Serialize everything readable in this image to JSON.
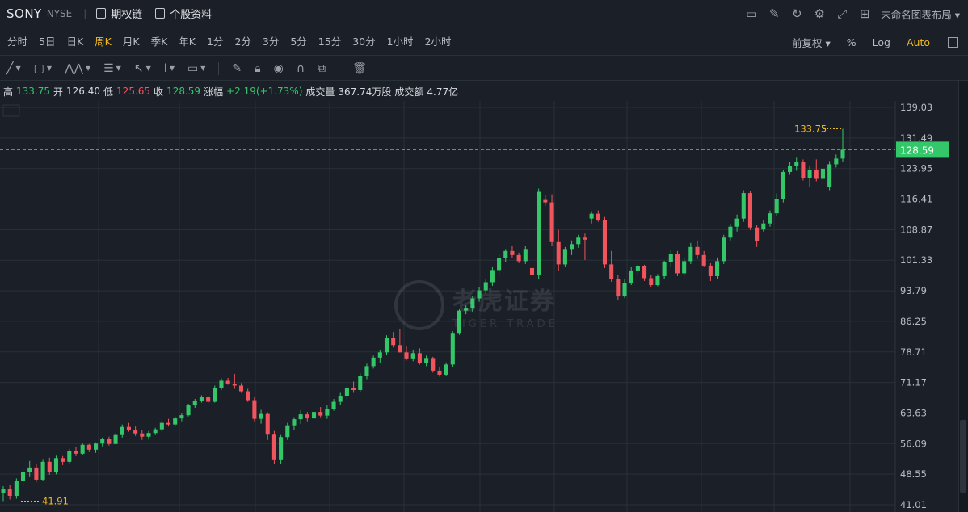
{
  "topbar": {
    "ticker": "SONY",
    "exchange": "NYSE",
    "link1": "期权链",
    "link2": "个股资料",
    "layout_label": "未命名图表布局 ▾"
  },
  "periods": [
    "分时",
    "5日",
    "日K",
    "周K",
    "月K",
    "季K",
    "年K",
    "1分",
    "2分",
    "3分",
    "5分",
    "15分",
    "30分",
    "1小时",
    "2小时"
  ],
  "active_period": "周K",
  "chart_options": {
    "adjust": "前复权 ▾",
    "percent": "%",
    "log": "Log",
    "auto": "Auto"
  },
  "info": {
    "high_label": "高",
    "high": "133.75",
    "open_label": "开",
    "open": "126.40",
    "low_label": "低",
    "low": "125.65",
    "close_label": "收",
    "close": "128.59",
    "change_label": "涨幅",
    "change": "+2.19(+1.73%)",
    "volume_label": "成交量",
    "volume": "367.74万股",
    "turnover_label": "成交额",
    "turnover": "4.77亿"
  },
  "watermark": {
    "cn": "老虎证券",
    "en": "TIGER TRADE"
  },
  "colors": {
    "up": "#34c76a",
    "down": "#f0545c",
    "accent": "#f2b91c",
    "bg": "#1b2028",
    "grid": "#2a3038"
  },
  "chart_data": {
    "type": "candlestick",
    "y_ticks": [
      "139.03",
      "131.49",
      "123.95",
      "116.41",
      "108.87",
      "101.33",
      "93.79",
      "86.25",
      "78.71",
      "71.17",
      "63.63",
      "56.09",
      "48.55",
      "41.01"
    ],
    "ylim": [
      41.01,
      139.03
    ],
    "last_price": "128.59",
    "max_label": "133.75",
    "min_label": "41.91",
    "candles": [
      [
        44.0,
        45.6,
        41.9,
        44.8
      ],
      [
        44.8,
        46.0,
        42.3,
        43.2
      ],
      [
        43.2,
        47.5,
        42.5,
        46.8
      ],
      [
        46.8,
        50.0,
        45.5,
        49.0
      ],
      [
        49.0,
        51.8,
        47.8,
        50.2
      ],
      [
        50.2,
        51.0,
        46.6,
        47.2
      ],
      [
        47.2,
        52.3,
        46.8,
        51.6
      ],
      [
        51.6,
        52.6,
        48.4,
        49.0
      ],
      [
        49.0,
        53.1,
        48.5,
        52.5
      ],
      [
        52.5,
        53.0,
        50.8,
        51.6
      ],
      [
        51.6,
        54.8,
        51.2,
        54.2
      ],
      [
        54.2,
        55.2,
        53.0,
        53.6
      ],
      [
        53.6,
        56.2,
        53.2,
        55.8
      ],
      [
        55.8,
        56.0,
        54.0,
        54.6
      ],
      [
        54.6,
        56.4,
        53.8,
        56.1
      ],
      [
        56.1,
        57.6,
        55.4,
        57.2
      ],
      [
        57.2,
        57.8,
        55.6,
        56.0
      ],
      [
        56.0,
        58.6,
        55.9,
        58.2
      ],
      [
        58.2,
        60.8,
        57.6,
        60.2
      ],
      [
        60.2,
        61.2,
        59.0,
        59.5
      ],
      [
        59.5,
        60.3,
        58.0,
        58.6
      ],
      [
        58.6,
        59.5,
        57.0,
        57.8
      ],
      [
        57.8,
        59.2,
        57.1,
        58.7
      ],
      [
        58.7,
        60.0,
        58.2,
        59.6
      ],
      [
        59.6,
        61.8,
        59.0,
        61.2
      ],
      [
        61.2,
        62.2,
        60.3,
        60.8
      ],
      [
        60.8,
        62.8,
        60.2,
        62.3
      ],
      [
        62.3,
        63.6,
        61.6,
        63.1
      ],
      [
        63.1,
        65.9,
        62.8,
        65.5
      ],
      [
        65.5,
        67.1,
        64.9,
        66.6
      ],
      [
        66.6,
        68.0,
        66.2,
        67.5
      ],
      [
        67.5,
        67.9,
        66.0,
        66.4
      ],
      [
        66.4,
        70.4,
        66.2,
        69.8
      ],
      [
        69.8,
        72.2,
        69.3,
        71.6
      ],
      [
        71.6,
        72.3,
        70.6,
        70.9
      ],
      [
        70.9,
        73.3,
        69.6,
        70.4
      ],
      [
        70.4,
        71.0,
        68.6,
        69.0
      ],
      [
        69.0,
        69.6,
        66.4,
        66.8
      ],
      [
        66.8,
        67.6,
        61.6,
        62.2
      ],
      [
        62.2,
        64.4,
        61.0,
        63.4
      ],
      [
        63.4,
        63.8,
        57.0,
        58.3
      ],
      [
        58.3,
        59.2,
        51.0,
        52.2
      ],
      [
        52.2,
        58.2,
        51.0,
        57.7
      ],
      [
        57.7,
        61.2,
        57.0,
        60.6
      ],
      [
        60.6,
        62.6,
        59.4,
        62.1
      ],
      [
        62.1,
        64.3,
        60.9,
        63.3
      ],
      [
        63.3,
        63.9,
        61.6,
        62.3
      ],
      [
        62.3,
        64.6,
        61.7,
        63.9
      ],
      [
        63.9,
        65.1,
        62.6,
        63.0
      ],
      [
        63.0,
        65.5,
        62.2,
        64.6
      ],
      [
        64.6,
        67.1,
        64.2,
        66.4
      ],
      [
        66.4,
        68.6,
        65.6,
        67.9
      ],
      [
        67.9,
        70.4,
        67.0,
        69.8
      ],
      [
        69.8,
        71.4,
        68.6,
        69.3
      ],
      [
        69.3,
        73.4,
        68.8,
        72.8
      ],
      [
        72.8,
        75.8,
        72.0,
        75.2
      ],
      [
        75.2,
        77.8,
        74.6,
        77.3
      ],
      [
        77.3,
        79.2,
        75.9,
        78.6
      ],
      [
        78.6,
        82.8,
        78.0,
        82.1
      ],
      [
        82.1,
        83.6,
        79.8,
        80.4
      ],
      [
        80.4,
        84.3,
        78.6,
        78.6
      ],
      [
        78.6,
        80.0,
        76.6,
        77.1
      ],
      [
        77.1,
        79.2,
        76.4,
        78.4
      ],
      [
        78.4,
        79.6,
        75.6,
        75.9
      ],
      [
        75.9,
        77.8,
        75.2,
        77.2
      ],
      [
        77.2,
        77.5,
        73.6,
        74.1
      ],
      [
        74.1,
        75.0,
        72.6,
        73.1
      ],
      [
        73.1,
        76.1,
        72.9,
        75.6
      ],
      [
        75.6,
        83.8,
        75.0,
        83.4
      ],
      [
        83.4,
        89.2,
        82.9,
        88.9
      ],
      [
        88.9,
        90.2,
        88.0,
        89.4
      ],
      [
        89.4,
        92.6,
        88.6,
        91.9
      ],
      [
        91.9,
        94.6,
        91.1,
        93.9
      ],
      [
        93.9,
        96.6,
        93.1,
        95.9
      ],
      [
        95.9,
        99.6,
        95.0,
        98.9
      ],
      [
        98.9,
        102.8,
        97.8,
        101.9
      ],
      [
        101.9,
        104.1,
        100.8,
        103.6
      ],
      [
        103.6,
        104.8,
        102.0,
        102.6
      ],
      [
        102.6,
        103.2,
        100.6,
        101.1
      ],
      [
        101.1,
        104.8,
        100.4,
        104.1
      ],
      [
        99.4,
        101.8,
        96.8,
        97.6
      ],
      [
        97.6,
        119.0,
        96.6,
        118.2
      ],
      [
        116.2,
        117.4,
        114.8,
        115.6
      ],
      [
        115.6,
        117.6,
        104.8,
        105.8
      ],
      [
        105.8,
        108.8,
        98.6,
        100.3
      ],
      [
        100.3,
        104.6,
        99.6,
        104.1
      ],
      [
        104.1,
        106.2,
        102.6,
        105.3
      ],
      [
        105.3,
        107.6,
        104.4,
        106.9
      ],
      [
        106.9,
        107.9,
        101.4,
        106.4
      ],
      [
        111.6,
        113.4,
        110.4,
        112.8
      ],
      [
        112.8,
        113.6,
        110.8,
        111.2
      ],
      [
        111.2,
        112.0,
        99.4,
        100.3
      ],
      [
        100.3,
        103.6,
        96.0,
        96.6
      ],
      [
        96.6,
        97.6,
        91.6,
        92.4
      ],
      [
        92.4,
        96.6,
        92.0,
        95.6
      ],
      [
        95.6,
        99.6,
        95.2,
        98.8
      ],
      [
        98.8,
        100.4,
        97.6,
        99.9
      ],
      [
        99.9,
        100.2,
        96.2,
        96.9
      ],
      [
        96.9,
        97.6,
        94.6,
        95.2
      ],
      [
        95.2,
        97.9,
        94.9,
        97.4
      ],
      [
        97.4,
        101.2,
        96.6,
        100.8
      ],
      [
        100.8,
        103.8,
        99.6,
        102.9
      ],
      [
        102.9,
        103.6,
        97.4,
        98.1
      ],
      [
        98.1,
        101.9,
        97.4,
        101.1
      ],
      [
        101.1,
        105.6,
        100.4,
        104.6
      ],
      [
        104.6,
        106.2,
        101.6,
        102.6
      ],
      [
        102.6,
        103.6,
        99.6,
        100.0
      ],
      [
        100.0,
        100.6,
        96.2,
        97.4
      ],
      [
        97.4,
        102.0,
        96.6,
        101.1
      ],
      [
        101.1,
        107.6,
        100.4,
        106.9
      ],
      [
        106.9,
        110.3,
        106.2,
        109.6
      ],
      [
        109.6,
        112.6,
        108.4,
        111.6
      ],
      [
        111.6,
        118.6,
        110.8,
        117.9
      ],
      [
        117.9,
        118.4,
        108.8,
        109.4
      ],
      [
        109.4,
        110.0,
        104.6,
        106.1
      ],
      [
        108.9,
        111.2,
        108.4,
        110.4
      ],
      [
        110.4,
        113.6,
        109.6,
        112.9
      ],
      [
        112.9,
        117.8,
        112.2,
        116.4
      ],
      [
        116.4,
        123.6,
        115.6,
        123.1
      ],
      [
        123.1,
        125.6,
        122.4,
        124.6
      ],
      [
        124.6,
        126.6,
        123.4,
        125.6
      ],
      [
        125.6,
        126.2,
        121.0,
        121.6
      ],
      [
        121.6,
        124.6,
        119.4,
        123.6
      ],
      [
        123.6,
        126.2,
        120.8,
        121.4
      ],
      [
        121.4,
        124.6,
        120.2,
        123.9
      ],
      [
        119.4,
        125.8,
        118.6,
        125.0
      ],
      [
        125.0,
        127.4,
        124.2,
        126.4
      ],
      [
        126.4,
        133.75,
        125.65,
        128.59
      ]
    ]
  }
}
